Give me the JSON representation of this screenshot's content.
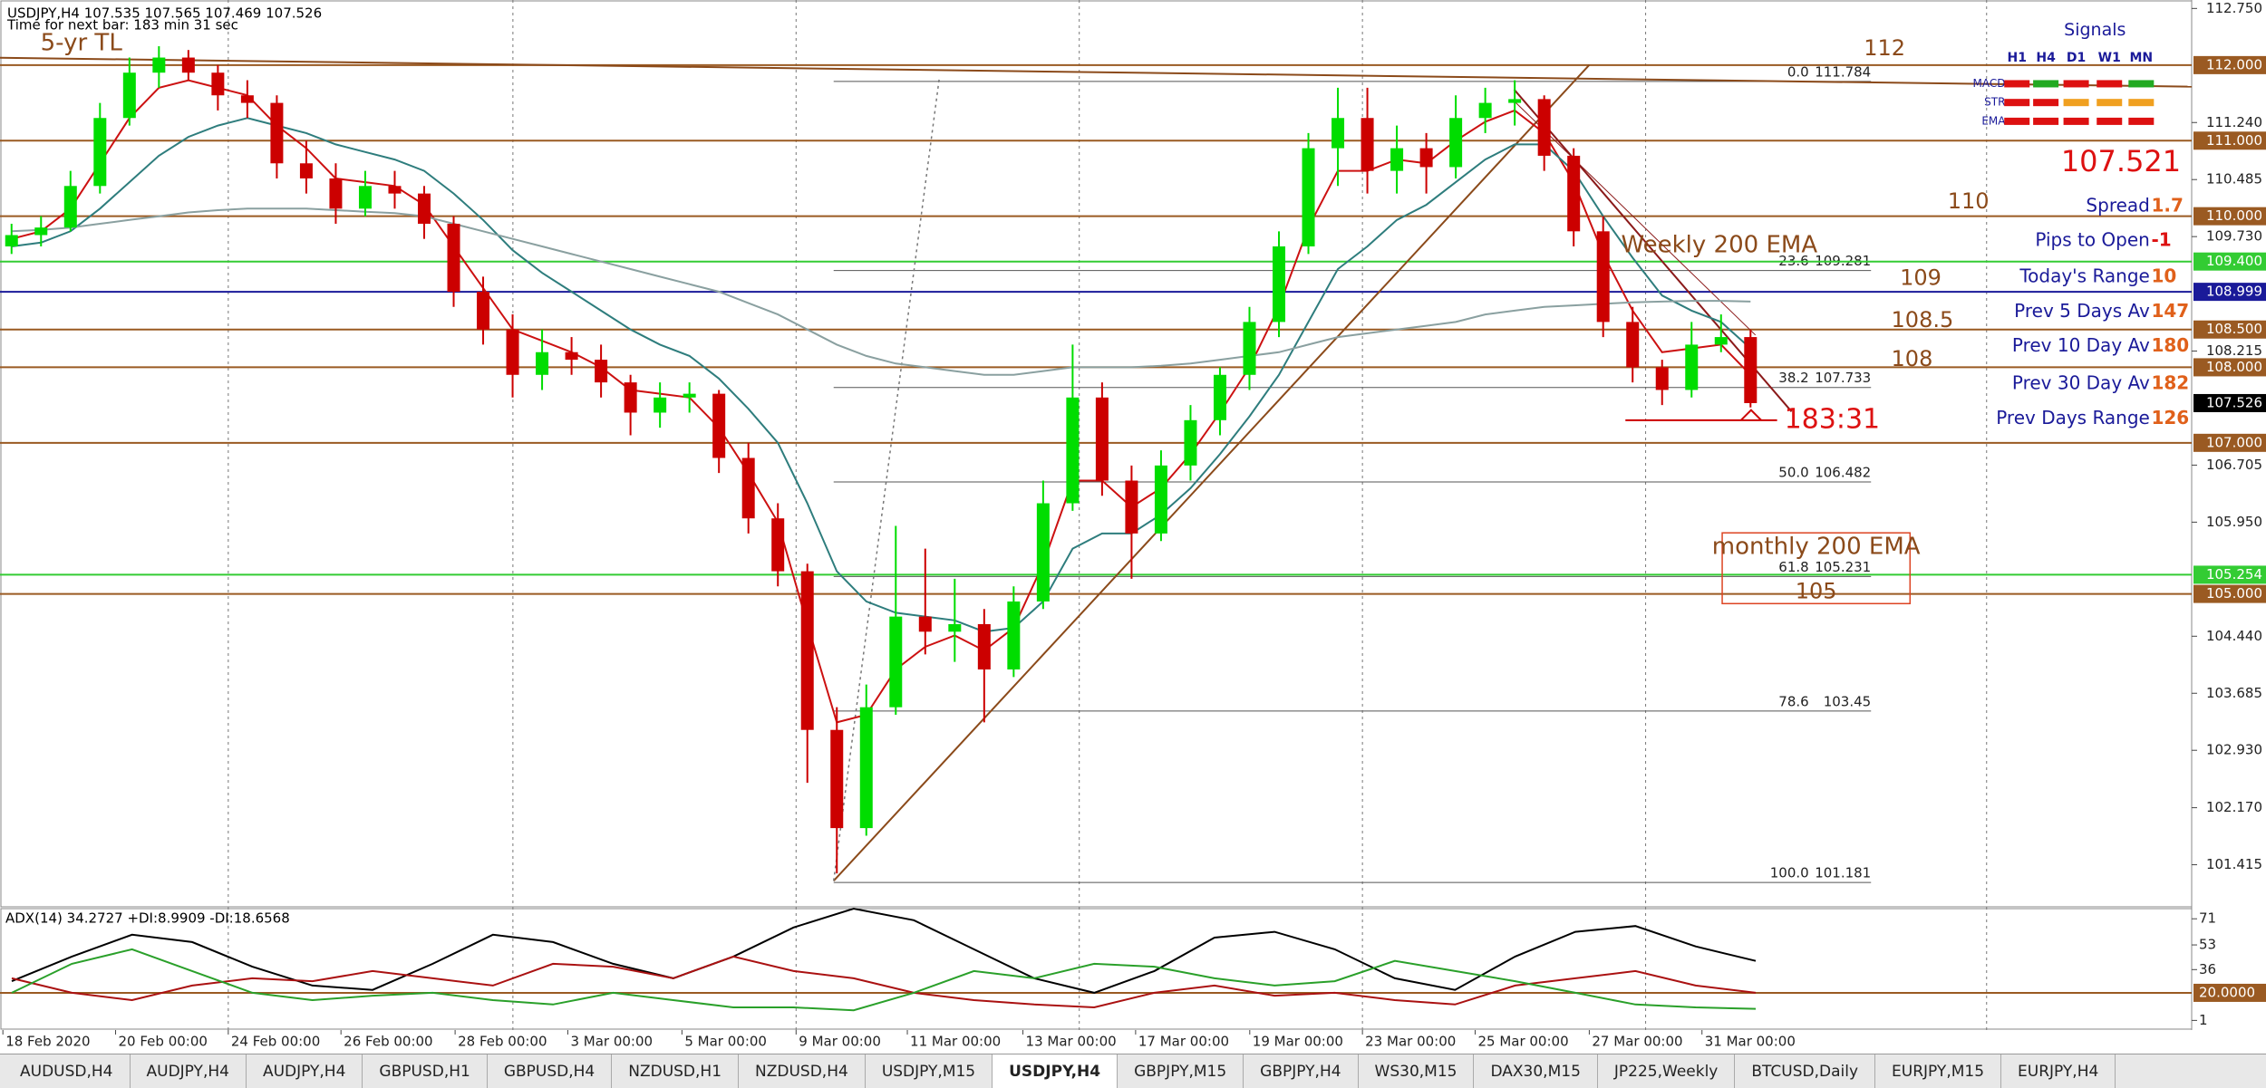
{
  "chart_data": [
    {
      "type": "candlestick",
      "title": "USDJPY,H4  107.535 107.565 107.469 107.526",
      "subtitle": "Time for next bar: 183 min 31 sec",
      "ylim": [
        100.87,
        112.79
      ],
      "yticks": [
        {
          "value": 112.75,
          "label": "112.750"
        },
        {
          "value": 111.24,
          "label": "111.240"
        },
        {
          "value": 110.485,
          "label": "110.485"
        },
        {
          "value": 109.73,
          "label": "109.730"
        },
        {
          "value": 108.215,
          "label": "108.215"
        },
        {
          "value": 106.705,
          "label": "106.705"
        },
        {
          "value": 105.95,
          "label": "105.950"
        },
        {
          "value": 104.44,
          "label": "104.440"
        },
        {
          "value": 103.685,
          "label": "103.685"
        },
        {
          "value": 102.93,
          "label": "102.930"
        },
        {
          "value": 102.17,
          "label": "102.170"
        },
        {
          "value": 101.415,
          "label": "101.415"
        }
      ],
      "time_labels": [
        "18 Feb 2020",
        "20 Feb 00:00",
        "24 Feb 00:00",
        "26 Feb 00:00",
        "28 Feb 00:00",
        "3 Mar 00:00",
        "5 Mar 00:00",
        "9 Mar 00:00",
        "11 Mar 00:00",
        "13 Mar 00:00",
        "17 Mar 00:00",
        "19 Mar 00:00",
        "23 Mar 00:00",
        "25 Mar 00:00",
        "27 Mar 00:00",
        "31 Mar 00:00"
      ],
      "up_color": "#00dd00",
      "down_color": "#cc0000",
      "candles": [
        [
          109.6,
          109.9,
          109.5,
          109.75
        ],
        [
          109.75,
          110.0,
          109.6,
          109.85
        ],
        [
          109.85,
          110.6,
          109.8,
          110.4
        ],
        [
          110.4,
          111.5,
          110.3,
          111.3
        ],
        [
          111.3,
          112.1,
          111.2,
          111.9
        ],
        [
          111.9,
          112.25,
          111.7,
          112.1
        ],
        [
          112.1,
          112.2,
          111.8,
          111.9
        ],
        [
          111.9,
          112.0,
          111.4,
          111.6
        ],
        [
          111.6,
          111.8,
          111.3,
          111.5
        ],
        [
          111.5,
          111.6,
          110.5,
          110.7
        ],
        [
          110.7,
          111.0,
          110.3,
          110.5
        ],
        [
          110.5,
          110.7,
          109.9,
          110.1
        ],
        [
          110.1,
          110.6,
          110.0,
          110.4
        ],
        [
          110.4,
          110.6,
          110.1,
          110.3
        ],
        [
          110.3,
          110.4,
          109.7,
          109.9
        ],
        [
          109.9,
          110.0,
          108.8,
          109.0
        ],
        [
          109.0,
          109.2,
          108.3,
          108.5
        ],
        [
          108.5,
          108.7,
          107.6,
          107.9
        ],
        [
          107.9,
          108.5,
          107.7,
          108.2
        ],
        [
          108.2,
          108.4,
          107.9,
          108.1
        ],
        [
          108.1,
          108.3,
          107.6,
          107.8
        ],
        [
          107.8,
          107.9,
          107.1,
          107.4
        ],
        [
          107.4,
          107.8,
          107.2,
          107.6
        ],
        [
          107.6,
          107.8,
          107.4,
          107.65
        ],
        [
          107.65,
          107.7,
          106.6,
          106.8
        ],
        [
          106.8,
          107.0,
          105.8,
          106.0
        ],
        [
          106.0,
          106.2,
          105.1,
          105.3
        ],
        [
          105.3,
          105.4,
          102.5,
          103.2
        ],
        [
          103.2,
          103.5,
          101.3,
          101.9
        ],
        [
          101.9,
          103.8,
          101.8,
          103.5
        ],
        [
          103.5,
          105.9,
          103.4,
          104.7
        ],
        [
          104.7,
          105.6,
          104.2,
          104.5
        ],
        [
          104.5,
          105.2,
          104.1,
          104.6
        ],
        [
          104.6,
          104.8,
          103.3,
          104.0
        ],
        [
          104.0,
          105.1,
          103.9,
          104.9
        ],
        [
          104.9,
          106.5,
          104.8,
          106.2
        ],
        [
          106.2,
          108.3,
          106.1,
          107.6
        ],
        [
          107.6,
          107.8,
          106.3,
          106.5
        ],
        [
          106.5,
          106.7,
          105.2,
          105.8
        ],
        [
          105.8,
          106.9,
          105.7,
          106.7
        ],
        [
          106.7,
          107.5,
          106.5,
          107.3
        ],
        [
          107.3,
          108.0,
          107.1,
          107.9
        ],
        [
          107.9,
          108.8,
          107.7,
          108.6
        ],
        [
          108.6,
          109.8,
          108.4,
          109.6
        ],
        [
          109.6,
          111.1,
          109.5,
          110.9
        ],
        [
          110.9,
          111.7,
          110.4,
          111.3
        ],
        [
          111.3,
          111.7,
          110.3,
          110.6
        ],
        [
          110.6,
          111.2,
          110.3,
          110.9
        ],
        [
          110.9,
          111.1,
          110.3,
          110.65
        ],
        [
          110.65,
          111.6,
          110.5,
          111.3
        ],
        [
          111.3,
          111.7,
          111.1,
          111.5
        ],
        [
          111.5,
          111.8,
          111.2,
          111.55
        ],
        [
          111.55,
          111.6,
          110.6,
          110.8
        ],
        [
          110.8,
          110.9,
          109.6,
          109.8
        ],
        [
          109.8,
          110.0,
          108.4,
          108.6
        ],
        [
          108.6,
          108.8,
          107.8,
          108.0
        ],
        [
          108.0,
          108.1,
          107.5,
          107.7
        ],
        [
          107.7,
          108.6,
          107.6,
          108.3
        ],
        [
          108.3,
          108.7,
          108.2,
          108.4
        ],
        [
          108.4,
          108.5,
          107.469,
          107.526
        ]
      ],
      "moving_averages": [
        {
          "color": "#cc1111",
          "values": [
            109.7,
            109.8,
            110.1,
            110.7,
            111.3,
            111.7,
            111.8,
            111.7,
            111.6,
            111.2,
            110.9,
            110.5,
            110.45,
            110.4,
            110.15,
            109.6,
            109.05,
            108.5,
            108.35,
            108.2,
            108.0,
            107.7,
            107.65,
            107.6,
            107.2,
            106.6,
            105.95,
            104.6,
            103.3,
            103.4,
            104.0,
            104.3,
            104.45,
            104.25,
            104.55,
            105.4,
            106.5,
            106.5,
            106.15,
            106.4,
            106.85,
            107.4,
            108.0,
            108.8,
            109.85,
            110.6,
            110.6,
            110.75,
            110.7,
            111.0,
            111.25,
            111.4,
            111.1,
            110.45,
            109.5,
            108.75,
            108.2,
            108.25,
            108.3,
            107.9
          ]
        },
        {
          "color": "#2e7d7d",
          "values": [
            109.6,
            109.65,
            109.8,
            110.1,
            110.45,
            110.8,
            111.05,
            111.2,
            111.3,
            111.2,
            111.1,
            110.95,
            110.85,
            110.75,
            110.6,
            110.3,
            109.95,
            109.55,
            109.25,
            109.0,
            108.75,
            108.5,
            108.3,
            108.15,
            107.85,
            107.45,
            107.0,
            106.2,
            105.3,
            104.9,
            104.75,
            104.7,
            104.65,
            104.5,
            104.55,
            104.9,
            105.6,
            105.8,
            105.8,
            106.05,
            106.4,
            106.85,
            107.35,
            107.9,
            108.6,
            109.3,
            109.6,
            109.95,
            110.15,
            110.45,
            110.75,
            110.95,
            110.95,
            110.6,
            110.0,
            109.45,
            108.95,
            108.75,
            108.6,
            108.25
          ]
        },
        {
          "color": "#8aa0a0",
          "values": [
            109.8,
            109.82,
            109.85,
            109.9,
            109.95,
            110.0,
            110.05,
            110.08,
            110.1,
            110.1,
            110.1,
            110.08,
            110.06,
            110.04,
            110.0,
            109.9,
            109.8,
            109.7,
            109.6,
            109.5,
            109.4,
            109.3,
            109.2,
            109.1,
            109.0,
            108.85,
            108.7,
            108.5,
            108.3,
            108.15,
            108.05,
            108.0,
            107.95,
            107.9,
            107.9,
            107.95,
            108.0,
            108.0,
            108.0,
            108.02,
            108.05,
            108.1,
            108.15,
            108.2,
            108.3,
            108.4,
            108.45,
            108.5,
            108.55,
            108.6,
            108.7,
            108.75,
            108.8,
            108.82,
            108.84,
            108.86,
            108.87,
            108.88,
            108.88,
            108.87
          ]
        }
      ],
      "levels": [
        {
          "value": 112.0,
          "label": "112.000",
          "color": "#9a5a22"
        },
        {
          "value": 111.0,
          "label": "111.000",
          "color": "#9a5a22"
        },
        {
          "value": 110.0,
          "label": "110.000",
          "color": "#9a5a22"
        },
        {
          "value": 109.4,
          "label": "109.400",
          "color": "#33cc33"
        },
        {
          "value": 108.999,
          "label": "108.999",
          "color": "#1a1a99"
        },
        {
          "value": 108.5,
          "label": "108.500",
          "color": "#9a5a22"
        },
        {
          "value": 108.0,
          "label": "108.000",
          "color": "#9a5a22"
        },
        {
          "value": 107.526,
          "label": "107.526",
          "color": "#000000"
        },
        {
          "value": 107.0,
          "label": "107.000",
          "color": "#9a5a22"
        },
        {
          "value": 105.254,
          "label": "105.254",
          "color": "#33cc33"
        },
        {
          "value": 105.0,
          "label": "105.000",
          "color": "#9a5a22"
        }
      ],
      "fibonacci": [
        {
          "level": "0.0",
          "price": 111.784
        },
        {
          "level": "23.6",
          "price": 109.281
        },
        {
          "level": "38.2",
          "price": 107.733
        },
        {
          "level": "50.0",
          "price": 106.482
        },
        {
          "level": "61.8",
          "price": 105.231
        },
        {
          "level": "78.6",
          "price": 103.45
        },
        {
          "level": "100.0",
          "price": 101.181
        }
      ],
      "annotations": [
        "5-yr TL",
        "112",
        "110",
        "109",
        "108.5",
        "108",
        "Weekly 200 EMA"
      ],
      "monthly_label": "monthly 200 EMA",
      "monthly_value": "105",
      "countdown": "183:31"
    },
    {
      "type": "line",
      "title": "ADX(14) 34.2727 +DI:8.9909 -DI:18.6568",
      "ylim": [
        -5,
        78
      ],
      "yticks": [
        71,
        53,
        36,
        {
          "value": 20,
          "label": "20.0000",
          "highlight": true
        },
        1
      ],
      "series": [
        {
          "color": "#000000",
          "values": [
            28,
            45,
            60,
            55,
            38,
            25,
            22,
            40,
            60,
            55,
            40,
            30,
            45,
            65,
            78,
            70,
            50,
            30,
            20,
            35,
            58,
            62,
            50,
            30,
            22,
            45,
            62,
            66,
            52,
            42
          ]
        },
        {
          "color": "#aa1111",
          "values": [
            30,
            20,
            15,
            25,
            30,
            28,
            35,
            30,
            25,
            40,
            38,
            30,
            45,
            35,
            30,
            20,
            15,
            12,
            10,
            20,
            25,
            18,
            20,
            15,
            12,
            25,
            30,
            35,
            25,
            20
          ]
        },
        {
          "color": "#2aa02a",
          "values": [
            20,
            40,
            50,
            35,
            20,
            15,
            18,
            20,
            15,
            12,
            20,
            15,
            10,
            10,
            8,
            20,
            35,
            30,
            40,
            38,
            30,
            25,
            28,
            42,
            35,
            28,
            20,
            12,
            10,
            9
          ]
        }
      ]
    }
  ],
  "signals": {
    "title": "Signals",
    "columns": [
      "H1",
      "H4",
      "D1",
      "W1",
      "MN"
    ],
    "rows": [
      {
        "label": "MACD",
        "colors": [
          "#dd1111",
          "#22aa22",
          "#dd1111",
          "#dd1111",
          "#22aa22"
        ]
      },
      {
        "label": "STR",
        "colors": [
          "#dd1111",
          "#dd1111",
          "#f0a020",
          "#f0a020",
          "#f0a020"
        ]
      },
      {
        "label": "EMA",
        "colors": [
          "#dd1111",
          "#dd1111",
          "#dd1111",
          "#dd1111",
          "#dd1111"
        ]
      }
    ]
  },
  "big_price": 107.521,
  "info_panel": [
    {
      "label": "Spread",
      "value": 1.7
    },
    {
      "label": "Pips to Open",
      "value": -1
    },
    {
      "label": "Today's Range",
      "value": 10
    },
    {
      "label": "Prev 5 Days Av",
      "value": 147
    },
    {
      "label": "Prev 10 Day Av",
      "value": 180
    },
    {
      "label": "Prev 30 Day Av",
      "value": 182
    },
    {
      "label": "Prev Days Range",
      "value": 126
    }
  ],
  "tabs": [
    "AUDUSD,H4",
    "AUDJPY,H4",
    "AUDJPY,H4",
    "GBPUSD,H1",
    "GBPUSD,H4",
    "NZDUSD,H1",
    "NZDUSD,H4",
    "USDJPY,M15",
    "USDJPY,H4",
    "GBPJPY,M15",
    "GBPJPY,H4",
    "WS30,M15",
    "DAX30,M15",
    "JP225,Weekly",
    "BTCUSD,Daily",
    "EURJPY,M15",
    "EURJPY,H4"
  ],
  "active_tab": 8
}
